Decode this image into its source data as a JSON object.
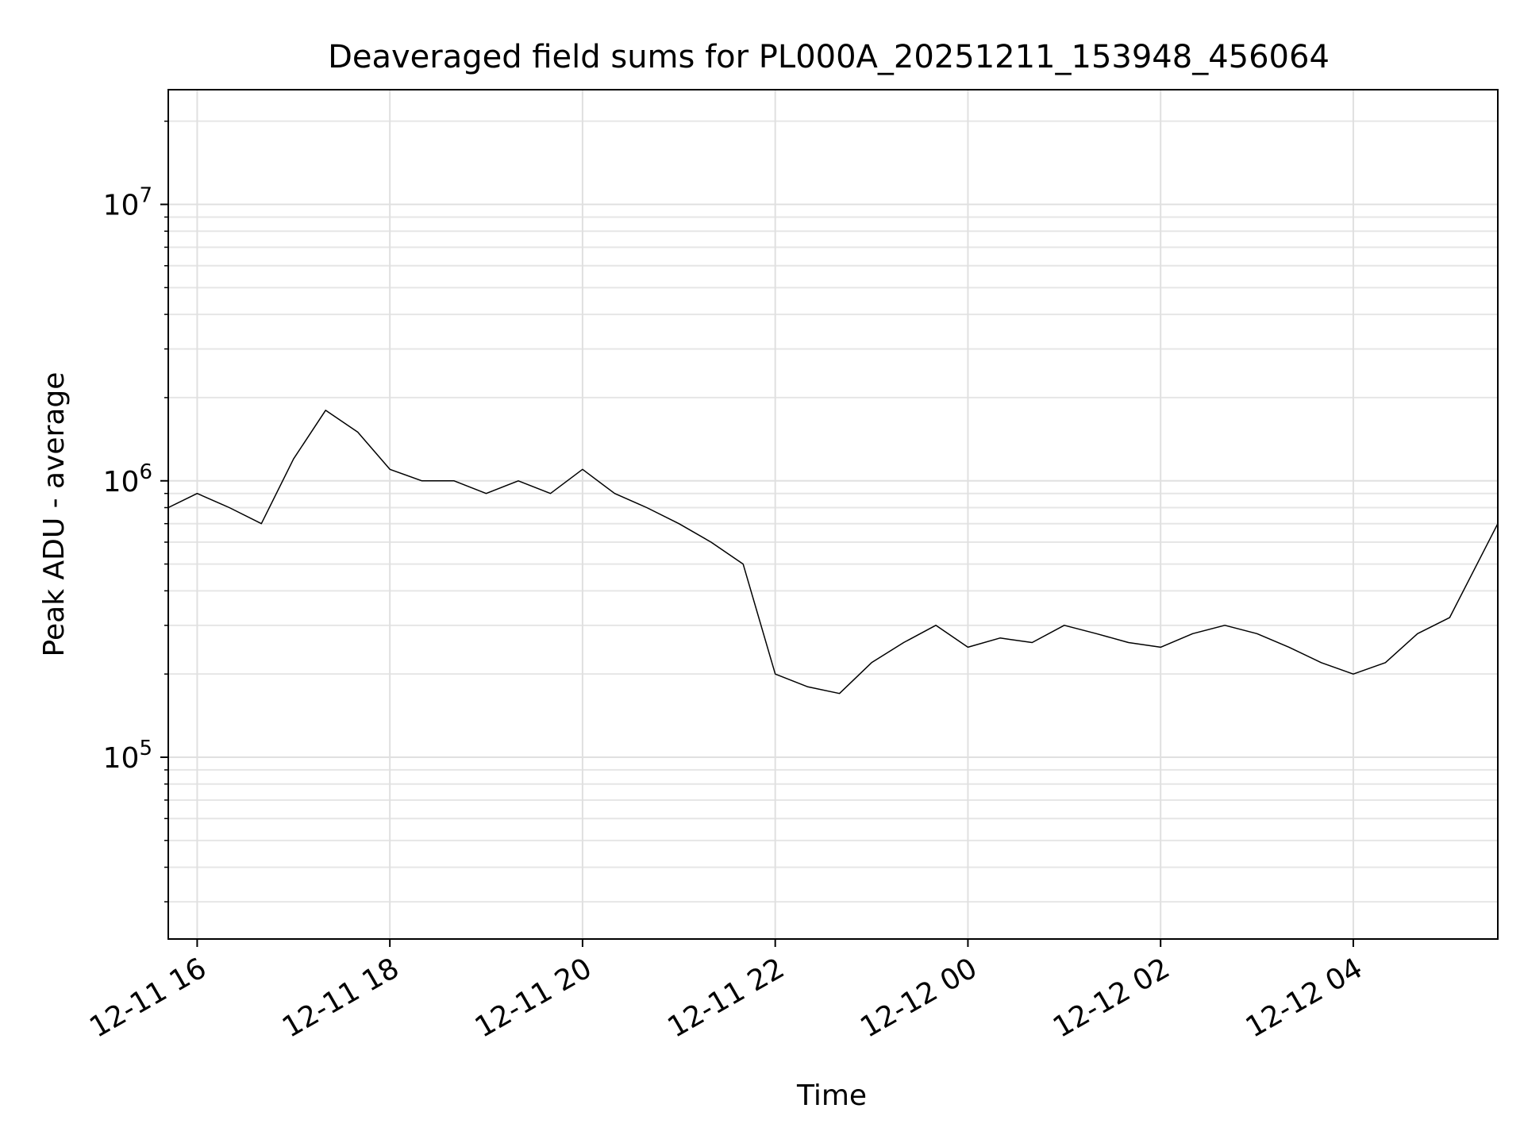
{
  "chart_data": {
    "type": "line",
    "title": "Deaveraged field sums for PL000A_20251211_153948_456064",
    "xlabel": "Time",
    "ylabel": "Peak ADU - average",
    "yscale": "log",
    "xlim": [
      "2025-12-11 15:42",
      "2025-12-12 05:30"
    ],
    "ylim": [
      22000,
      26000000
    ],
    "grid": true,
    "line_color": "#000000",
    "x_ticks": [
      {
        "label": "12-11 16",
        "value": "2025-12-11 16:00"
      },
      {
        "label": "12-11 18",
        "value": "2025-12-11 18:00"
      },
      {
        "label": "12-11 20",
        "value": "2025-12-11 20:00"
      },
      {
        "label": "12-11 22",
        "value": "2025-12-11 22:00"
      },
      {
        "label": "12-12 00",
        "value": "2025-12-12 00:00"
      },
      {
        "label": "12-12 02",
        "value": "2025-12-12 02:00"
      },
      {
        "label": "12-12 04",
        "value": "2025-12-12 04:00"
      }
    ],
    "y_ticks": [
      {
        "mantissa": "10",
        "exponent": "5",
        "value": 100000
      },
      {
        "mantissa": "10",
        "exponent": "6",
        "value": 1000000
      },
      {
        "mantissa": "10",
        "exponent": "7",
        "value": 10000000
      }
    ],
    "series": [
      {
        "x": [
          "2025-12-11 15:42",
          "2025-12-11 16:00",
          "2025-12-11 16:20",
          "2025-12-11 16:40",
          "2025-12-11 17:00",
          "2025-12-11 17:20",
          "2025-12-11 17:40",
          "2025-12-11 18:00",
          "2025-12-11 18:20",
          "2025-12-11 18:40",
          "2025-12-11 19:00",
          "2025-12-11 19:20",
          "2025-12-11 19:40",
          "2025-12-11 20:00",
          "2025-12-11 20:20",
          "2025-12-11 20:40",
          "2025-12-11 21:00",
          "2025-12-11 21:20",
          "2025-12-11 21:40",
          "2025-12-11 22:00",
          "2025-12-11 22:20",
          "2025-12-11 22:40",
          "2025-12-11 23:00",
          "2025-12-11 23:20",
          "2025-12-11 23:40",
          "2025-12-12 00:00",
          "2025-12-12 00:20",
          "2025-12-12 00:40",
          "2025-12-12 01:00",
          "2025-12-12 01:20",
          "2025-12-12 01:40",
          "2025-12-12 02:00",
          "2025-12-12 02:20",
          "2025-12-12 02:40",
          "2025-12-12 03:00",
          "2025-12-12 03:20",
          "2025-12-12 03:40",
          "2025-12-12 04:00",
          "2025-12-12 04:20",
          "2025-12-12 04:40",
          "2025-12-12 05:00",
          "2025-12-12 05:30"
        ],
        "y": [
          800000,
          900000,
          800000,
          700000,
          1200000,
          1800000,
          1500000,
          1100000,
          1000000,
          1000000,
          900000,
          1000000,
          900000,
          1100000,
          900000,
          800000,
          700000,
          600000,
          500000,
          200000,
          180000,
          170000,
          220000,
          260000,
          300000,
          250000,
          270000,
          260000,
          300000,
          280000,
          260000,
          250000,
          280000,
          300000,
          280000,
          250000,
          220000,
          200000,
          220000,
          280000,
          320000,
          700000
        ]
      }
    ]
  }
}
